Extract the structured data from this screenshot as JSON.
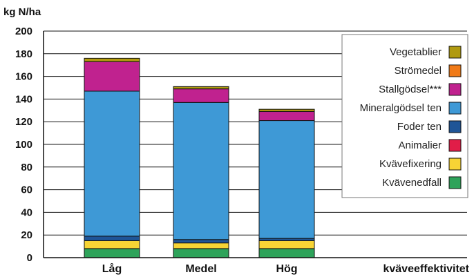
{
  "chart_data": {
    "type": "bar",
    "stacked": true,
    "title": "",
    "ylabel": "kg N/ha",
    "xlabel": "kväveeffektivitet",
    "categories": [
      "Låg",
      "Medel",
      "Hög"
    ],
    "ylim": [
      0,
      200
    ],
    "yticks": [
      0,
      20,
      40,
      60,
      80,
      100,
      120,
      140,
      160,
      180,
      200
    ],
    "grid": true,
    "legend_position": "top-right",
    "series": [
      {
        "name": "Kvävenedfall",
        "color": "#2ea35a",
        "values": [
          8,
          8,
          8
        ]
      },
      {
        "name": "Kvävefixering",
        "color": "#f7d435",
        "values": [
          7,
          5,
          7
        ]
      },
      {
        "name": "Animalier",
        "color": "#e11d48",
        "values": [
          0,
          0,
          0
        ]
      },
      {
        "name": "Foder ten",
        "color": "#1f5597",
        "values": [
          4,
          3,
          2
        ]
      },
      {
        "name": "Mineralgödsel ten",
        "color": "#3e99d6",
        "values": [
          128,
          121,
          104
        ]
      },
      {
        "name": "Stallgödsel***",
        "color": "#c0228f",
        "values": [
          26,
          12,
          8
        ]
      },
      {
        "name": "Strömedel",
        "color": "#f07a18",
        "values": [
          0,
          0,
          0
        ]
      },
      {
        "name": "Vegetablier",
        "color": "#b09a0f",
        "values": [
          3,
          2,
          2
        ]
      }
    ]
  }
}
